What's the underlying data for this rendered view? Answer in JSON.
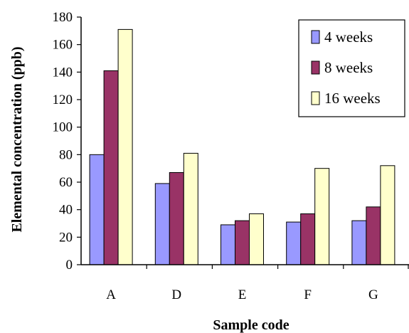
{
  "chart_data": {
    "type": "bar",
    "title": "",
    "xlabel": "Sample code",
    "ylabel": "Elemental concentration (ppb)",
    "ylim": [
      0,
      180
    ],
    "yticks": [
      "0",
      "20",
      "40",
      "60",
      "80",
      "100",
      "120",
      "140",
      "160",
      "180"
    ],
    "categories": [
      "A",
      "D",
      "E",
      "F",
      "G"
    ],
    "series": [
      {
        "name": "4 weeks",
        "values": [
          80,
          59,
          29,
          31,
          32
        ],
        "color": "#9999ff"
      },
      {
        "name": "8 weeks",
        "values": [
          141,
          67,
          32,
          37,
          42
        ],
        "color": "#993366"
      },
      {
        "name": "16 weeks",
        "values": [
          171,
          81,
          37,
          70,
          72
        ],
        "color": "#ffffcc"
      }
    ],
    "legend_position": "top-right",
    "grid": false
  }
}
